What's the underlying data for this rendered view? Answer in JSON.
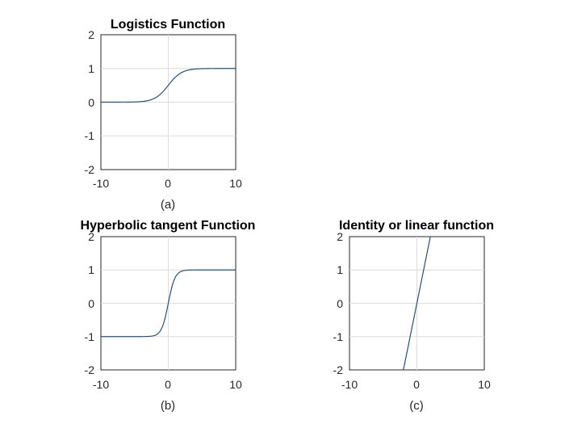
{
  "chart_data": [
    {
      "type": "line",
      "title": "Logistics Function",
      "caption": "(a)",
      "function": "logistic",
      "x": [
        -10,
        -8,
        -6,
        -5,
        -4,
        -3,
        -2,
        -1,
        0,
        1,
        2,
        3,
        4,
        5,
        6,
        8,
        10
      ],
      "y": [
        4.54e-05,
        0.000335,
        0.00247,
        0.00669,
        0.018,
        0.0474,
        0.1192,
        0.2689,
        0.5,
        0.7311,
        0.8808,
        0.9526,
        0.982,
        0.9933,
        0.9975,
        0.99966,
        0.99995
      ],
      "xlim": [
        -10,
        10
      ],
      "ylim": [
        -2,
        2
      ],
      "xticks": [
        "-10",
        "0",
        "10"
      ],
      "yticks": [
        "2",
        "1",
        "0",
        "-1",
        "-2"
      ],
      "grid": true,
      "color": "#2f4f6f"
    },
    {
      "type": "line",
      "title": "Hyperbolic tangent Function",
      "caption": "(b)",
      "function": "tanh",
      "x": [
        -10,
        -8,
        -6,
        -5,
        -4,
        -3,
        -2,
        -1,
        0,
        1,
        2,
        3,
        4,
        5,
        6,
        8,
        10
      ],
      "y": [
        -0.99999,
        -0.99995,
        -0.99995,
        -0.9999,
        -0.9993,
        -0.9951,
        -0.964,
        -0.7616,
        0,
        0.7616,
        0.964,
        0.9951,
        0.9993,
        0.9999,
        0.99995,
        0.99995,
        0.99999
      ],
      "xlim": [
        -10,
        10
      ],
      "ylim": [
        -2,
        2
      ],
      "xticks": [
        "-10",
        "0",
        "10"
      ],
      "yticks": [
        "2",
        "1",
        "0",
        "-1",
        "-2"
      ],
      "grid": true,
      "color": "#2f4f6f"
    },
    {
      "type": "line",
      "title": "Identity or linear function",
      "caption": "(c)",
      "function": "identity",
      "x": [
        -2,
        2
      ],
      "y": [
        -2,
        2
      ],
      "xlim": [
        -10,
        10
      ],
      "ylim": [
        -2,
        2
      ],
      "xticks": [
        "-10",
        "0",
        "10"
      ],
      "yticks": [
        "2",
        "1",
        "0",
        "-1",
        "-2"
      ],
      "grid": true,
      "color": "#2f4f6f"
    }
  ]
}
